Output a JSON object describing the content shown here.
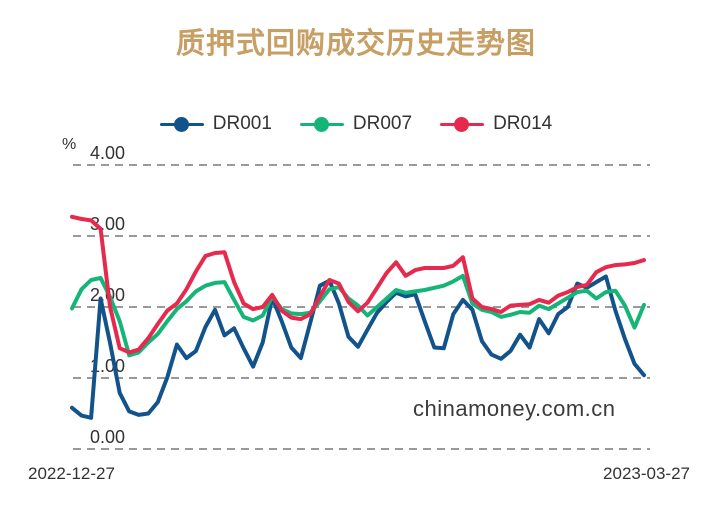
{
  "title": {
    "text": "质押式回购成交历史走势图",
    "color": "#c79e63"
  },
  "legend": {
    "position": "top"
  },
  "watermark": "chinamoney.com.cn",
  "chart_data": {
    "type": "line",
    "title": "质押式回购成交历史走势图",
    "ylabel": "%",
    "ylim": [
      0,
      4
    ],
    "grid": "dashed-horizontal",
    "grid_color": "#999999",
    "text_color": "#333333",
    "legend_position": "top",
    "yticks": [
      {
        "value": 4,
        "label": "4.00"
      },
      {
        "value": 3,
        "label": "3.00"
      },
      {
        "value": 2,
        "label": "2.00"
      },
      {
        "value": 1,
        "label": "1.00"
      },
      {
        "value": 0,
        "label": "0.00"
      }
    ],
    "x_axis_labels": {
      "start": "2022-12-27",
      "end": "2023-03-27"
    },
    "x_range_note": "daily values from 2022-12-27 to 2023-03-27",
    "series": [
      {
        "name": "DR001",
        "color": "#12538b",
        "values": [
          0.58,
          0.47,
          0.44,
          2.12,
          1.49,
          0.79,
          0.53,
          0.48,
          0.5,
          0.66,
          1.01,
          1.47,
          1.28,
          1.38,
          1.72,
          1.96,
          1.6,
          1.7,
          1.42,
          1.16,
          1.5,
          2.13,
          1.8,
          1.43,
          1.28,
          1.78,
          2.3,
          2.37,
          2.05,
          1.58,
          1.44,
          1.68,
          1.92,
          2.07,
          2.2,
          2.15,
          2.18,
          1.8,
          1.43,
          1.42,
          1.9,
          2.1,
          1.96,
          1.52,
          1.33,
          1.27,
          1.38,
          1.61,
          1.43,
          1.83,
          1.63,
          1.9,
          2.0,
          2.33,
          2.27,
          2.35,
          2.43,
          1.95,
          1.55,
          1.2,
          1.04
        ]
      },
      {
        "name": "DR007",
        "color": "#15b578",
        "values": [
          1.98,
          2.25,
          2.38,
          2.41,
          2.14,
          1.8,
          1.32,
          1.36,
          1.5,
          1.62,
          1.8,
          1.97,
          2.08,
          2.22,
          2.3,
          2.34,
          2.35,
          2.1,
          1.86,
          1.81,
          1.88,
          2.15,
          1.97,
          1.91,
          1.9,
          1.92,
          2.08,
          2.25,
          2.28,
          2.12,
          2.02,
          1.88,
          2.0,
          2.12,
          2.24,
          2.2,
          2.22,
          2.24,
          2.27,
          2.3,
          2.36,
          2.44,
          2.05,
          1.96,
          1.93,
          1.86,
          1.89,
          1.93,
          1.92,
          2.02,
          1.97,
          2.05,
          2.13,
          2.21,
          2.23,
          2.12,
          2.21,
          2.23,
          2.02,
          1.71,
          2.03
        ]
      },
      {
        "name": "DR014",
        "color": "#e6294c",
        "values": [
          3.27,
          3.24,
          3.22,
          3.1,
          2.0,
          1.42,
          1.36,
          1.4,
          1.56,
          1.76,
          1.95,
          2.05,
          2.25,
          2.5,
          2.72,
          2.76,
          2.77,
          2.35,
          2.05,
          1.97,
          2.0,
          2.17,
          1.95,
          1.85,
          1.83,
          1.9,
          2.15,
          2.38,
          2.33,
          2.07,
          1.94,
          2.06,
          2.27,
          2.48,
          2.63,
          2.44,
          2.52,
          2.55,
          2.55,
          2.55,
          2.58,
          2.7,
          2.12,
          2.0,
          1.97,
          1.93,
          2.02,
          2.03,
          2.04,
          2.1,
          2.06,
          2.16,
          2.21,
          2.28,
          2.31,
          2.49,
          2.56,
          2.59,
          2.6,
          2.62,
          2.66
        ]
      }
    ]
  }
}
